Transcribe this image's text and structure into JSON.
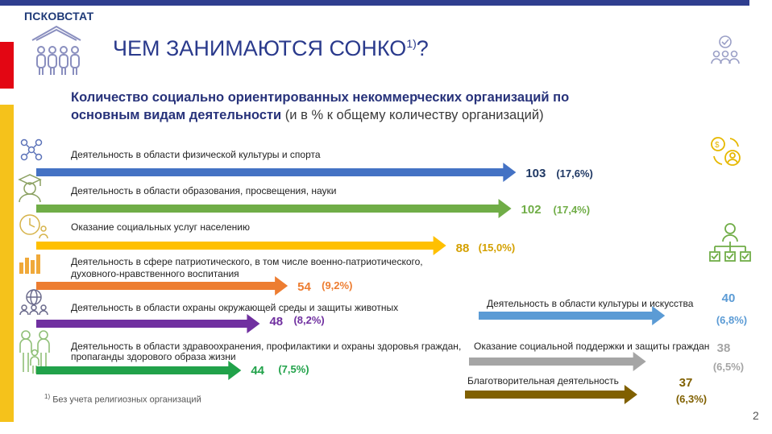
{
  "header": {
    "brand": "ПСКОВСТАТ",
    "title": "ЧЕМ ЗАНИМАЮТСЯ СОНКО",
    "title_sup": "1)",
    "title_suffix": "?",
    "subtitle_bold": "Количество социально ориентированных некоммерческих организаций по основным видам деятельности",
    "subtitle_unit": "(и в % к общему количеству организаций)"
  },
  "footnote": {
    "marker": "1)",
    "text": "Без учета религиозных организаций"
  },
  "page_number": "2",
  "chart_data": {
    "type": "bar",
    "orientation": "horizontal",
    "title": "Количество социально ориентированных некоммерческих организаций по основным видам деятельности",
    "unit_note": "(и в % к общему количеству организаций)",
    "categories": [
      "Деятельность в области физической культуры и спорта",
      "Деятельность в области образования, просвещения, науки",
      "Оказание социальных услуг населению",
      "Деятельность в сфере патриотического, в том числе военно-патриотического, духовного-нравственного воспитания",
      "Деятельность в области охраны окружающей среды и защиты животных",
      "Деятельность в области здравоохранения, профилактики и охраны здоровья граждан, пропаганды здорового образа жизни",
      "Деятельность в области культуры и искусства",
      "Оказание социальной поддержки и защиты граждан",
      "Благотворительная деятельность"
    ],
    "values": [
      103,
      102,
      88,
      54,
      48,
      44,
      40,
      38,
      37
    ],
    "value_labels": [
      "103",
      "102",
      "88",
      "54",
      "48",
      "44",
      "40",
      "38",
      "37"
    ],
    "percent_labels": [
      "(17,6%)",
      "(17,4%)",
      "(15,0%)",
      "(9,2%)",
      "(8,2%)",
      "(7,5%)",
      "(6,8%)",
      "(6,5%)",
      "(6,3%)"
    ],
    "colors": [
      "#4472c4",
      "#70ad47",
      "#ffc000",
      "#ed7d31",
      "#7030a0",
      "#21a24a",
      "#5b9bd5",
      "#a5a5a5",
      "#806000"
    ],
    "label_colors": [
      "#1f3864",
      "#70ad47",
      "#d4a000",
      "#ed7d31",
      "#7030a0",
      "#21a24a",
      "#5b9bd5",
      "#a5a5a5",
      "#806000"
    ]
  },
  "icons": [
    "network-icon",
    "education-icon",
    "clock-people-icon",
    "bar-graph-people-icon",
    "globe-people-icon",
    "family-icon",
    "team-icon",
    "support-icon",
    "hierarchy-icon",
    "house-people-icon"
  ]
}
